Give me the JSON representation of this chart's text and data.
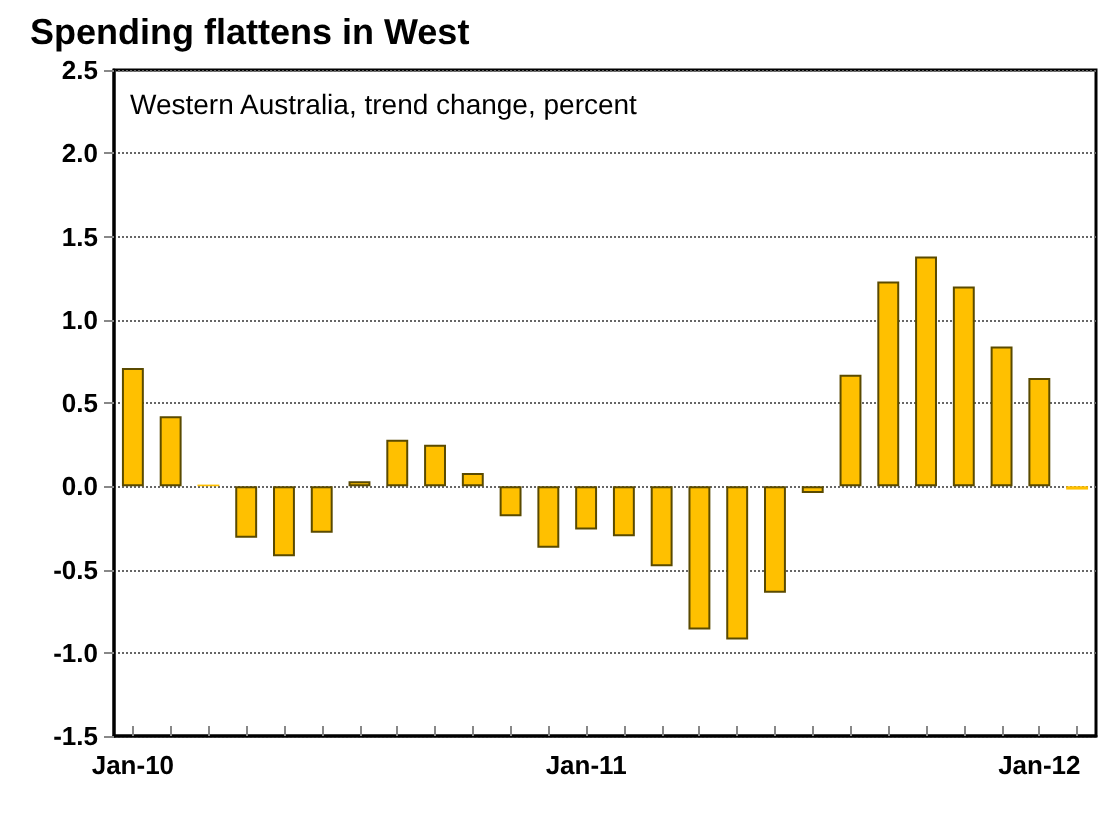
{
  "chart_data": {
    "type": "bar",
    "title": "Spending flattens in West",
    "subtitle": "Western Australia, trend change, percent",
    "categories": [
      "Jan-10",
      null,
      null,
      null,
      null,
      null,
      null,
      null,
      null,
      null,
      null,
      null,
      "Jan-11",
      null,
      null,
      null,
      null,
      null,
      null,
      null,
      null,
      null,
      null,
      null,
      "Jan-12",
      null
    ],
    "values": [
      0.71,
      0.42,
      0.01,
      -0.31,
      -0.42,
      -0.28,
      0.03,
      0.28,
      0.25,
      0.08,
      -0.18,
      -0.37,
      -0.26,
      -0.3,
      -0.48,
      -0.86,
      -0.92,
      -0.64,
      -0.04,
      0.67,
      1.23,
      1.38,
      1.2,
      0.84,
      0.65,
      -0.02
    ],
    "color": "#ffc000",
    "ylim": [
      -1.5,
      2.5
    ],
    "yticks": [
      -1.5,
      {
        "value": -1,
        "label": "-1.0"
      },
      -0.5,
      {
        "value": 0,
        "label": "0.0"
      },
      0.5,
      {
        "value": 1,
        "label": "1.0"
      },
      1.5,
      {
        "value": 2,
        "label": "2.0"
      },
      2.5
    ],
    "grid": "y"
  }
}
